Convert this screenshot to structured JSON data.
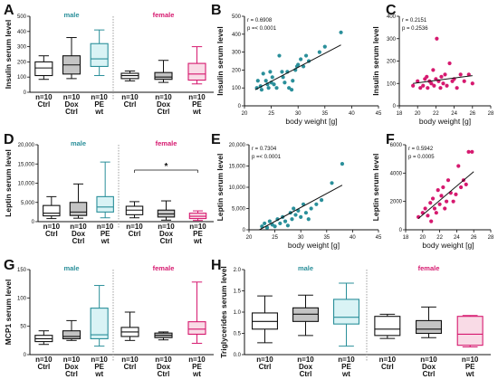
{
  "colors": {
    "male": "#2a8f9a",
    "female": "#d6196f",
    "dox": "#c4c4c4",
    "pe_male_fill": "#d9f3f5",
    "pe_female_fill": "#f9dbe6",
    "axis": "#111111",
    "divider": "#888888"
  },
  "chart_data": [
    {
      "panel": "A",
      "type": "box",
      "ylabel": "Insulin serum level",
      "ylim": [
        0,
        500
      ],
      "yticks": [
        "0",
        "100",
        "200",
        "300",
        "400",
        "500"
      ],
      "groups": [
        "male",
        "female"
      ],
      "categories": [
        "n=10\nCtrl",
        "n=10\nDox\nCtrl",
        "n=10\nPE\nwt"
      ],
      "boxes": [
        {
          "group": "male",
          "cat": "Ctrl",
          "min": 85,
          "q1": 110,
          "median": 160,
          "q3": 200,
          "max": 240,
          "fill": "white"
        },
        {
          "group": "male",
          "cat": "Dox",
          "min": 90,
          "q1": 120,
          "median": 180,
          "q3": 240,
          "max": 360,
          "fill": "dox"
        },
        {
          "group": "male",
          "cat": "PE",
          "min": 110,
          "q1": 170,
          "median": 220,
          "q3": 320,
          "max": 410,
          "fill": "pe"
        },
        {
          "group": "female",
          "cat": "Ctrl",
          "min": 75,
          "q1": 90,
          "median": 110,
          "q3": 125,
          "max": 140,
          "fill": "white"
        },
        {
          "group": "female",
          "cat": "Dox",
          "min": 65,
          "q1": 85,
          "median": 100,
          "q3": 130,
          "max": 210,
          "fill": "dox"
        },
        {
          "group": "female",
          "cat": "PE",
          "min": 55,
          "q1": 80,
          "median": 120,
          "q3": 190,
          "max": 300,
          "fill": "pe"
        }
      ]
    },
    {
      "panel": "B",
      "type": "scatter",
      "xlabel": "body weight [g]",
      "ylabel": "Insulin serum level",
      "xlim": [
        20,
        45
      ],
      "ylim": [
        0,
        500
      ],
      "xticks": [
        "20",
        "25",
        "30",
        "35",
        "40",
        "45"
      ],
      "yticks": [
        "0",
        "100",
        "200",
        "300",
        "400",
        "500"
      ],
      "stats": [
        "r = 0.6908",
        "p =< 0.0001"
      ],
      "series": "male",
      "fit": [
        [
          22,
          90
        ],
        [
          38,
          340
        ]
      ],
      "points": [
        [
          22.3,
          100
        ],
        [
          22.5,
          140
        ],
        [
          23,
          110
        ],
        [
          23.2,
          90
        ],
        [
          23.5,
          180
        ],
        [
          24,
          140
        ],
        [
          24.3,
          120
        ],
        [
          24.5,
          100
        ],
        [
          24.8,
          190
        ],
        [
          25,
          130
        ],
        [
          25.2,
          160
        ],
        [
          25.5,
          120
        ],
        [
          26,
          100
        ],
        [
          26.5,
          280
        ],
        [
          27,
          190
        ],
        [
          27.2,
          160
        ],
        [
          27.5,
          130
        ],
        [
          28,
          190
        ],
        [
          28.3,
          100
        ],
        [
          28.8,
          90
        ],
        [
          29,
          140
        ],
        [
          29.5,
          200
        ],
        [
          29.8,
          220
        ],
        [
          30,
          230
        ],
        [
          30.5,
          260
        ],
        [
          31,
          220
        ],
        [
          31.5,
          280
        ],
        [
          32,
          250
        ],
        [
          34,
          300
        ],
        [
          35,
          330
        ],
        [
          38,
          410
        ]
      ]
    },
    {
      "panel": "C",
      "type": "scatter",
      "xlabel": "body weight [g]",
      "ylabel": "Insulin serum level",
      "xlim": [
        18,
        28
      ],
      "ylim": [
        0,
        400
      ],
      "xticks": [
        "18",
        "20",
        "22",
        "24",
        "26",
        "28"
      ],
      "yticks": [
        "0",
        "100",
        "200",
        "300",
        "400"
      ],
      "stats": [
        "r = 0.2151",
        "p = 0.2536"
      ],
      "series": "female",
      "fit": [
        [
          19.5,
          100
        ],
        [
          26,
          135
        ]
      ],
      "points": [
        [
          19.5,
          90
        ],
        [
          20,
          110
        ],
        [
          20.3,
          80
        ],
        [
          20.6,
          90
        ],
        [
          20.8,
          120
        ],
        [
          21,
          130
        ],
        [
          21.1,
          80
        ],
        [
          21.3,
          110
        ],
        [
          21.5,
          100
        ],
        [
          21.7,
          160
        ],
        [
          21.8,
          90
        ],
        [
          22,
          120
        ],
        [
          22.1,
          300
        ],
        [
          22.3,
          110
        ],
        [
          22.5,
          80
        ],
        [
          22.6,
          130
        ],
        [
          22.8,
          100
        ],
        [
          23,
          140
        ],
        [
          23.2,
          90
        ],
        [
          23.5,
          190
        ],
        [
          23.8,
          110
        ],
        [
          24,
          120
        ],
        [
          24.3,
          80
        ],
        [
          24.7,
          140
        ],
        [
          25.1,
          110
        ],
        [
          25.6,
          140
        ],
        [
          26,
          100
        ]
      ]
    },
    {
      "panel": "D",
      "type": "box",
      "ylabel": "Leptin serum level",
      "ylim": [
        0,
        20000
      ],
      "yticks": [
        "0",
        "5,000",
        "10,000",
        "15,000",
        "20,000"
      ],
      "groups": [
        "male",
        "female"
      ],
      "categories": [
        "n=10\nCtrl",
        "n=10\nDox\nCtrl",
        "n=10\nPE\nwt"
      ],
      "annotation": "*",
      "boxes": [
        {
          "group": "male",
          "cat": "Ctrl",
          "min": 800,
          "q1": 1500,
          "median": 2200,
          "q3": 4200,
          "max": 6500,
          "fill": "white"
        },
        {
          "group": "male",
          "cat": "Dox",
          "min": 900,
          "q1": 1600,
          "median": 2500,
          "q3": 5000,
          "max": 9800,
          "fill": "dox"
        },
        {
          "group": "male",
          "cat": "PE",
          "min": 1000,
          "q1": 2500,
          "median": 3800,
          "q3": 6500,
          "max": 15500,
          "fill": "pe"
        },
        {
          "group": "female",
          "cat": "Ctrl",
          "min": 1000,
          "q1": 1800,
          "median": 3000,
          "q3": 4000,
          "max": 5200,
          "fill": "white"
        },
        {
          "group": "female",
          "cat": "Dox",
          "min": 400,
          "q1": 1200,
          "median": 2000,
          "q3": 3000,
          "max": 5400,
          "fill": "dox"
        },
        {
          "group": "female",
          "cat": "PE",
          "min": 300,
          "q1": 800,
          "median": 1400,
          "q3": 2200,
          "max": 2800,
          "fill": "pe"
        }
      ]
    },
    {
      "panel": "E",
      "type": "scatter",
      "xlabel": "body weight [g]",
      "ylabel": "Leptin serum level",
      "xlim": [
        20,
        45
      ],
      "ylim": [
        0,
        20000
      ],
      "xticks": [
        "20",
        "25",
        "30",
        "35",
        "40",
        "45"
      ],
      "yticks": [
        "0",
        "5,000",
        "10,000",
        "15,000",
        "20,000"
      ],
      "stats": [
        "r = 0.7304",
        "p =< 0.0001"
      ],
      "series": "male",
      "fit": [
        [
          22,
          0
        ],
        [
          38,
          10500
        ]
      ],
      "points": [
        [
          22.5,
          800
        ],
        [
          23,
          1500
        ],
        [
          23.5,
          500
        ],
        [
          24,
          2000
        ],
        [
          24.5,
          1200
        ],
        [
          25,
          800
        ],
        [
          25.5,
          2500
        ],
        [
          26,
          1500
        ],
        [
          26.5,
          3000
        ],
        [
          27,
          2000
        ],
        [
          27.5,
          1000
        ],
        [
          28,
          4000
        ],
        [
          28.3,
          2500
        ],
        [
          28.6,
          5000
        ],
        [
          29,
          3500
        ],
        [
          29.5,
          4500
        ],
        [
          30,
          3000
        ],
        [
          30.5,
          6000
        ],
        [
          31,
          4000
        ],
        [
          31.5,
          2500
        ],
        [
          32,
          5000
        ],
        [
          33,
          6000
        ],
        [
          34,
          7000
        ],
        [
          36,
          11000
        ],
        [
          38,
          15500
        ]
      ]
    },
    {
      "panel": "F",
      "type": "scatter",
      "xlabel": "body weight [g]",
      "ylabel": "Leptin serum level",
      "xlim": [
        18,
        28
      ],
      "ylim": [
        0,
        6000
      ],
      "xticks": [
        "18",
        "20",
        "22",
        "24",
        "26",
        "28"
      ],
      "yticks": [
        "0",
        "2000",
        "4000",
        "6000"
      ],
      "stats": [
        "r = 0.5942",
        "p = 0.0005"
      ],
      "series": "female",
      "fit": [
        [
          19.5,
          800
        ],
        [
          26,
          4100
        ]
      ],
      "points": [
        [
          19.5,
          900
        ],
        [
          20,
          1200
        ],
        [
          20.3,
          1500
        ],
        [
          20.6,
          1000
        ],
        [
          20.9,
          1900
        ],
        [
          21,
          600
        ],
        [
          21.2,
          2200
        ],
        [
          21.4,
          1500
        ],
        [
          21.6,
          1200
        ],
        [
          21.8,
          2800
        ],
        [
          22,
          1800
        ],
        [
          22.2,
          2400
        ],
        [
          22.4,
          3000
        ],
        [
          22.6,
          1500
        ],
        [
          22.8,
          2000
        ],
        [
          23,
          3500
        ],
        [
          23.3,
          2600
        ],
        [
          23.6,
          2000
        ],
        [
          23.9,
          2500
        ],
        [
          24.2,
          4500
        ],
        [
          24.5,
          3000
        ],
        [
          24.8,
          3500
        ],
        [
          25.1,
          3200
        ],
        [
          25.4,
          5500
        ],
        [
          25.8,
          5500
        ]
      ]
    },
    {
      "panel": "G",
      "type": "box",
      "ylabel": "MCP1 serum level",
      "ylim": [
        0,
        150
      ],
      "yticks": [
        "0",
        "50",
        "100",
        "150"
      ],
      "groups": [
        "male",
        "female"
      ],
      "categories": [
        "n=10\nCtrl",
        "n=10\nDox\nCtrl",
        "n=10\nPE\nwt"
      ],
      "boxes": [
        {
          "group": "male",
          "cat": "Ctrl",
          "min": 18,
          "q1": 23,
          "median": 28,
          "q3": 34,
          "max": 42,
          "fill": "white"
        },
        {
          "group": "male",
          "cat": "Dox",
          "min": 25,
          "q1": 28,
          "median": 32,
          "q3": 42,
          "max": 60,
          "fill": "dox"
        },
        {
          "group": "male",
          "cat": "PE",
          "min": 15,
          "q1": 28,
          "median": 35,
          "q3": 82,
          "max": 122,
          "fill": "pe"
        },
        {
          "group": "female",
          "cat": "Ctrl",
          "min": 25,
          "q1": 32,
          "median": 40,
          "q3": 48,
          "max": 75,
          "fill": "white"
        },
        {
          "group": "female",
          "cat": "Dox",
          "min": 26,
          "q1": 30,
          "median": 34,
          "q3": 38,
          "max": 40,
          "fill": "dox"
        },
        {
          "group": "female",
          "cat": "PE",
          "min": 20,
          "q1": 36,
          "median": 45,
          "q3": 58,
          "max": 128,
          "fill": "pe"
        }
      ]
    },
    {
      "panel": "H",
      "type": "box",
      "ylabel": "Triglycerides serum level",
      "ylim": [
        0,
        2.0
      ],
      "yticks": [
        "0.0",
        "0.5",
        "1.0",
        "1.5",
        "2.0"
      ],
      "groups": [
        "male",
        "female"
      ],
      "categories": [
        "n=10\nCtrl",
        "n=10\nDox\nCtrl",
        "n=10\nPE\nwt"
      ],
      "boxes": [
        {
          "group": "male",
          "cat": "Ctrl",
          "min": 0.28,
          "q1": 0.6,
          "median": 0.78,
          "q3": 0.98,
          "max": 1.38,
          "fill": "white"
        },
        {
          "group": "male",
          "cat": "Dox",
          "min": 0.45,
          "q1": 0.78,
          "median": 0.95,
          "q3": 1.1,
          "max": 1.4,
          "fill": "dox"
        },
        {
          "group": "male",
          "cat": "PE",
          "min": 0.2,
          "q1": 0.72,
          "median": 0.88,
          "q3": 1.3,
          "max": 1.68,
          "fill": "pe"
        },
        {
          "group": "female",
          "cat": "Ctrl",
          "min": 0.38,
          "q1": 0.45,
          "median": 0.6,
          "q3": 0.9,
          "max": 0.95,
          "fill": "white"
        },
        {
          "group": "female",
          "cat": "Dox",
          "min": 0.4,
          "q1": 0.5,
          "median": 0.6,
          "q3": 0.8,
          "max": 1.12,
          "fill": "dox"
        },
        {
          "group": "female",
          "cat": "PE",
          "min": 0.18,
          "q1": 0.22,
          "median": 0.48,
          "q3": 0.9,
          "max": 0.92,
          "fill": "pe"
        }
      ]
    }
  ]
}
